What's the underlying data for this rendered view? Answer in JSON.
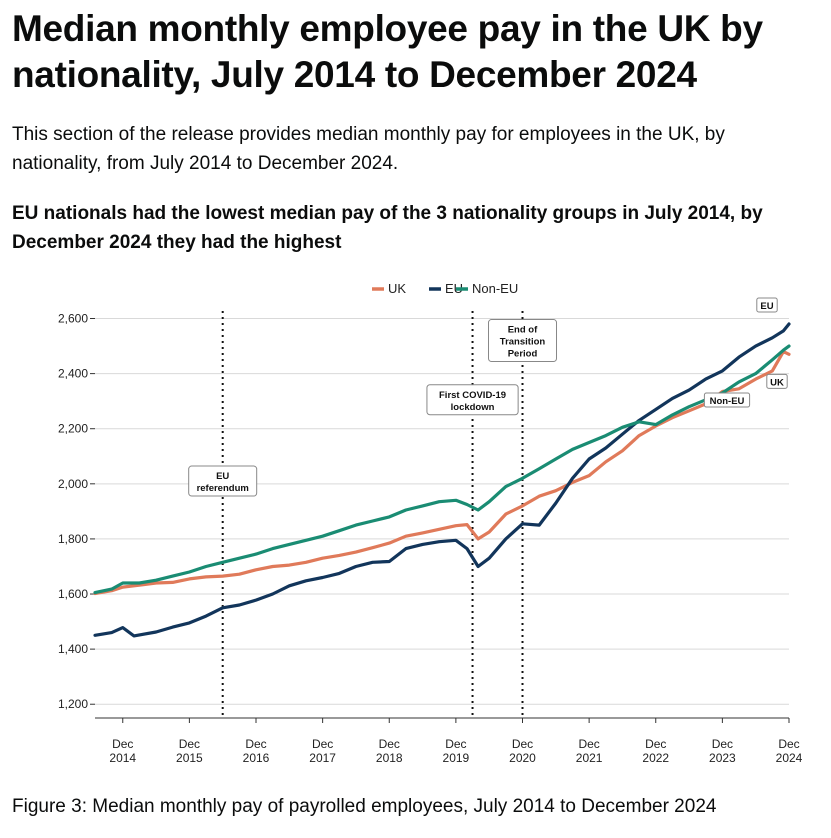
{
  "page": {
    "title": "Median monthly employee pay in the UK by nationality, July 2014 to December 2024",
    "lede": "This section of the release provides median monthly pay for employees in the UK, by nationality, from July 2014 to December 2024.",
    "chart_heading": "EU nationals had the lowest median pay of the 3 nationality groups in July 2014, by December 2024 they had the highest",
    "caption": "Figure 3: Median monthly pay of payrolled employees, July 2014 to December 2024"
  },
  "colors": {
    "UK": "#e07a5a",
    "EU": "#12355b",
    "Non-EU": "#1a8c73",
    "grid": "#d9d9d9",
    "axis": "#333333"
  },
  "chart_data": {
    "type": "line",
    "x_start": "2014-07",
    "x_end": "2024-12",
    "x_ticks": [
      {
        "month": "2014-12",
        "line1": "Dec",
        "line2": "2014"
      },
      {
        "month": "2015-12",
        "line1": "Dec",
        "line2": "2015"
      },
      {
        "month": "2016-12",
        "line1": "Dec",
        "line2": "2016"
      },
      {
        "month": "2017-12",
        "line1": "Dec",
        "line2": "2017"
      },
      {
        "month": "2018-12",
        "line1": "Dec",
        "line2": "2018"
      },
      {
        "month": "2019-12",
        "line1": "Dec",
        "line2": "2019"
      },
      {
        "month": "2020-12",
        "line1": "Dec",
        "line2": "2020"
      },
      {
        "month": "2021-12",
        "line1": "Dec",
        "line2": "2021"
      },
      {
        "month": "2022-12",
        "line1": "Dec",
        "line2": "2022"
      },
      {
        "month": "2023-12",
        "line1": "Dec",
        "line2": "2023"
      },
      {
        "month": "2024-12",
        "line1": "Dec",
        "line2": "2024"
      }
    ],
    "ylim": [
      1150,
      2620
    ],
    "y_ticks": [
      {
        "value": 1200,
        "label": "1,200"
      },
      {
        "value": 1400,
        "label": "1,400"
      },
      {
        "value": 1600,
        "label": "1,600"
      },
      {
        "value": 1800,
        "label": "1,800"
      },
      {
        "value": 2000,
        "label": "2,000"
      },
      {
        "value": 2200,
        "label": "2,200"
      },
      {
        "value": 2400,
        "label": "2,400"
      },
      {
        "value": 2600,
        "label": "2,600"
      }
    ],
    "grid": true,
    "legend_position": "top-center",
    "series": [
      {
        "name": "UK",
        "color": "#e07a5a",
        "points": [
          [
            "2014-07",
            1602
          ],
          [
            "2014-10",
            1612
          ],
          [
            "2014-12",
            1625
          ],
          [
            "2015-03",
            1632
          ],
          [
            "2015-06",
            1640
          ],
          [
            "2015-09",
            1642
          ],
          [
            "2015-12",
            1655
          ],
          [
            "2016-03",
            1662
          ],
          [
            "2016-06",
            1665
          ],
          [
            "2016-09",
            1672
          ],
          [
            "2016-12",
            1688
          ],
          [
            "2017-03",
            1700
          ],
          [
            "2017-06",
            1705
          ],
          [
            "2017-09",
            1715
          ],
          [
            "2017-12",
            1730
          ],
          [
            "2018-03",
            1740
          ],
          [
            "2018-06",
            1752
          ],
          [
            "2018-09",
            1768
          ],
          [
            "2018-12",
            1785
          ],
          [
            "2019-03",
            1810
          ],
          [
            "2019-06",
            1822
          ],
          [
            "2019-09",
            1835
          ],
          [
            "2019-12",
            1848
          ],
          [
            "2020-02",
            1852
          ],
          [
            "2020-04",
            1800
          ],
          [
            "2020-06",
            1825
          ],
          [
            "2020-09",
            1890
          ],
          [
            "2020-12",
            1920
          ],
          [
            "2021-03",
            1955
          ],
          [
            "2021-06",
            1975
          ],
          [
            "2021-09",
            2005
          ],
          [
            "2021-12",
            2030
          ],
          [
            "2022-03",
            2080
          ],
          [
            "2022-06",
            2120
          ],
          [
            "2022-09",
            2175
          ],
          [
            "2022-12",
            2210
          ],
          [
            "2023-03",
            2240
          ],
          [
            "2023-06",
            2265
          ],
          [
            "2023-09",
            2290
          ],
          [
            "2023-12",
            2335
          ],
          [
            "2024-03",
            2345
          ],
          [
            "2024-06",
            2380
          ],
          [
            "2024-09",
            2410
          ],
          [
            "2024-11",
            2480
          ],
          [
            "2024-12",
            2470
          ]
        ]
      },
      {
        "name": "EU",
        "color": "#12355b",
        "points": [
          [
            "2014-07",
            1450
          ],
          [
            "2014-10",
            1460
          ],
          [
            "2014-12",
            1478
          ],
          [
            "2015-02",
            1448
          ],
          [
            "2015-06",
            1462
          ],
          [
            "2015-09",
            1480
          ],
          [
            "2015-12",
            1495
          ],
          [
            "2016-03",
            1520
          ],
          [
            "2016-06",
            1550
          ],
          [
            "2016-09",
            1560
          ],
          [
            "2016-12",
            1578
          ],
          [
            "2017-03",
            1600
          ],
          [
            "2017-06",
            1630
          ],
          [
            "2017-09",
            1648
          ],
          [
            "2017-12",
            1660
          ],
          [
            "2018-03",
            1675
          ],
          [
            "2018-06",
            1700
          ],
          [
            "2018-09",
            1715
          ],
          [
            "2018-12",
            1718
          ],
          [
            "2019-03",
            1765
          ],
          [
            "2019-06",
            1780
          ],
          [
            "2019-09",
            1790
          ],
          [
            "2019-12",
            1795
          ],
          [
            "2020-02",
            1765
          ],
          [
            "2020-04",
            1700
          ],
          [
            "2020-06",
            1730
          ],
          [
            "2020-09",
            1800
          ],
          [
            "2020-12",
            1855
          ],
          [
            "2021-03",
            1850
          ],
          [
            "2021-06",
            1930
          ],
          [
            "2021-09",
            2020
          ],
          [
            "2021-12",
            2090
          ],
          [
            "2022-03",
            2130
          ],
          [
            "2022-06",
            2180
          ],
          [
            "2022-09",
            2230
          ],
          [
            "2022-12",
            2270
          ],
          [
            "2023-03",
            2310
          ],
          [
            "2023-06",
            2340
          ],
          [
            "2023-09",
            2380
          ],
          [
            "2023-12",
            2410
          ],
          [
            "2024-03",
            2460
          ],
          [
            "2024-06",
            2500
          ],
          [
            "2024-09",
            2530
          ],
          [
            "2024-11",
            2555
          ],
          [
            "2024-12",
            2580
          ]
        ]
      },
      {
        "name": "Non-EU",
        "color": "#1a8c73",
        "points": [
          [
            "2014-07",
            1605
          ],
          [
            "2014-10",
            1618
          ],
          [
            "2014-12",
            1640
          ],
          [
            "2015-03",
            1640
          ],
          [
            "2015-06",
            1650
          ],
          [
            "2015-09",
            1665
          ],
          [
            "2015-12",
            1680
          ],
          [
            "2016-03",
            1700
          ],
          [
            "2016-06",
            1715
          ],
          [
            "2016-09",
            1730
          ],
          [
            "2016-12",
            1745
          ],
          [
            "2017-03",
            1765
          ],
          [
            "2017-06",
            1780
          ],
          [
            "2017-09",
            1795
          ],
          [
            "2017-12",
            1810
          ],
          [
            "2018-03",
            1830
          ],
          [
            "2018-06",
            1850
          ],
          [
            "2018-09",
            1865
          ],
          [
            "2018-12",
            1880
          ],
          [
            "2019-03",
            1905
          ],
          [
            "2019-06",
            1920
          ],
          [
            "2019-09",
            1935
          ],
          [
            "2019-12",
            1940
          ],
          [
            "2020-02",
            1925
          ],
          [
            "2020-04",
            1905
          ],
          [
            "2020-06",
            1935
          ],
          [
            "2020-09",
            1990
          ],
          [
            "2020-12",
            2020
          ],
          [
            "2021-03",
            2055
          ],
          [
            "2021-06",
            2090
          ],
          [
            "2021-09",
            2125
          ],
          [
            "2021-12",
            2150
          ],
          [
            "2022-03",
            2175
          ],
          [
            "2022-06",
            2205
          ],
          [
            "2022-09",
            2225
          ],
          [
            "2022-12",
            2215
          ],
          [
            "2023-03",
            2250
          ],
          [
            "2023-06",
            2280
          ],
          [
            "2023-09",
            2305
          ],
          [
            "2023-12",
            2330
          ],
          [
            "2024-03",
            2370
          ],
          [
            "2024-06",
            2400
          ],
          [
            "2024-09",
            2450
          ],
          [
            "2024-11",
            2485
          ],
          [
            "2024-12",
            2500
          ]
        ]
      }
    ],
    "end_labels": [
      {
        "series": "EU",
        "text": "EU"
      },
      {
        "series": "UK",
        "text": "UK"
      },
      {
        "series": "Non-EU",
        "text": "Non-EU"
      }
    ],
    "annotations": [
      {
        "month": "2016-06",
        "lines": [
          "EU",
          "referendum"
        ],
        "value": 2010
      },
      {
        "month": "2020-03",
        "lines": [
          "First COVID-19",
          "lockdown"
        ],
        "value": 2305
      },
      {
        "month": "2020-12",
        "lines": [
          "End of",
          "Transition",
          "Period"
        ],
        "value": 2520
      }
    ]
  }
}
